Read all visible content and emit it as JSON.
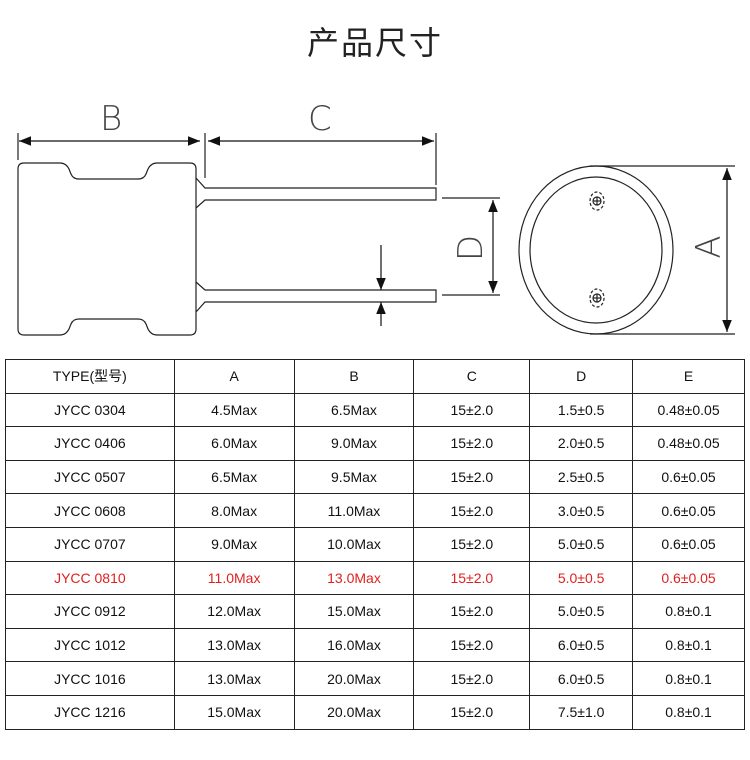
{
  "title": "产品尺寸",
  "diagram": {
    "labels": {
      "a": "A",
      "b": "B",
      "c": "C",
      "d": "D"
    }
  },
  "table": {
    "headers": [
      "TYPE(型号)",
      "A",
      "B",
      "C",
      "D",
      "E"
    ],
    "highlight_color": "#e02020",
    "rows": [
      [
        "JYCC 0304",
        "4.5Max",
        "6.5Max",
        "15±2.0",
        "1.5±0.5",
        "0.48±0.05"
      ],
      [
        "JYCC 0406",
        "6.0Max",
        "9.0Max",
        "15±2.0",
        "2.0±0.5",
        "0.48±0.05"
      ],
      [
        "JYCC 0507",
        "6.5Max",
        "9.5Max",
        "15±2.0",
        "2.5±0.5",
        "0.6±0.05"
      ],
      [
        "JYCC 0608",
        "8.0Max",
        "11.0Max",
        "15±2.0",
        "3.0±0.5",
        "0.6±0.05"
      ],
      [
        "JYCC 0707",
        "9.0Max",
        "10.0Max",
        "15±2.0",
        "5.0±0.5",
        "0.6±0.05"
      ],
      [
        "JYCC 0810",
        "11.0Max",
        "13.0Max",
        "15±2.0",
        "5.0±0.5",
        "0.6±0.05"
      ],
      [
        "JYCC 0912",
        "12.0Max",
        "15.0Max",
        "15±2.0",
        "5.0±0.5",
        "0.8±0.1"
      ],
      [
        "JYCC 1012",
        "13.0Max",
        "16.0Max",
        "15±2.0",
        "6.0±0.5",
        "0.8±0.1"
      ],
      [
        "JYCC 1016",
        "13.0Max",
        "20.0Max",
        "15±2.0",
        "6.0±0.5",
        "0.8±0.1"
      ],
      [
        "JYCC 1216",
        "15.0Max",
        "20.0Max",
        "15±2.0",
        "7.5±1.0",
        "0.8±0.1"
      ]
    ],
    "highlighted_row": 5
  }
}
